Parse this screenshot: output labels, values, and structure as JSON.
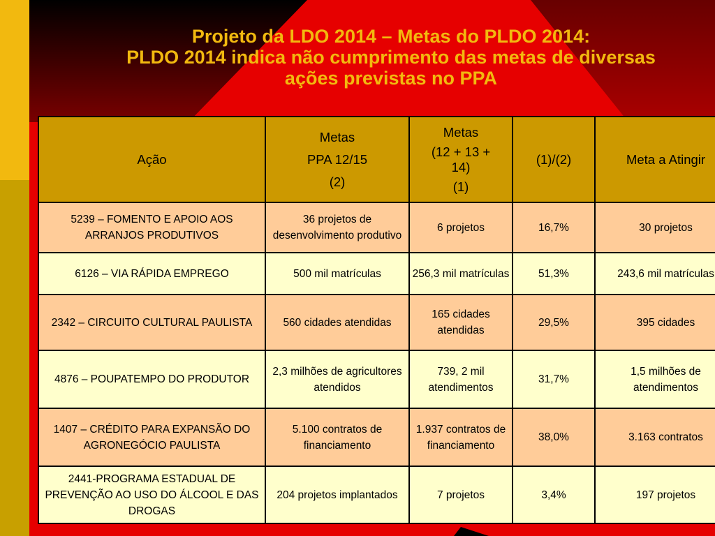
{
  "slide": {
    "title_line1": "Projeto da LDO 2014 – Metas do PLDO 2014:",
    "title_line2": "PLDO 2014 indica não cumprimento das metas de diversas",
    "title_line3": "ações previstas no PPA",
    "colors": {
      "background_red": "#e60000",
      "dark_gradient_top": "#000000",
      "left_strip_yellow": "#f2b90f",
      "left_strip_dark": "#c8a000",
      "header_gold": "#cc9900",
      "row_peach": "#ffcc99",
      "row_light_yellow": "#ffffcc",
      "title_color": "#f2b90f"
    }
  },
  "table": {
    "headers": {
      "acao": "Ação",
      "metas_ppa": [
        "Metas",
        "PPA 12/15",
        "(2)"
      ],
      "metas_12_14": [
        "Metas",
        "(12 + 13 +",
        "14)",
        "(1)"
      ],
      "ratio": "(1)/(2)",
      "meta_atingir": "Meta a Atingir"
    },
    "rows": [
      {
        "acao": "5239 – FOMENTO E APOIO AOS ARRANJOS PRODUTIVOS",
        "metas_ppa": "36 projetos de desenvolvimento produtivo",
        "metas_12_14": "6 projetos",
        "ratio": "16,7%",
        "meta_atingir": "30 projetos"
      },
      {
        "acao": "6126 – VIA RÁPIDA EMPREGO",
        "metas_ppa": "500 mil matrículas",
        "metas_12_14": "256,3 mil matrículas",
        "ratio": "51,3%",
        "meta_atingir": "243,6 mil matrículas"
      },
      {
        "acao": "2342 – CIRCUITO CULTURAL PAULISTA",
        "metas_ppa": "560 cidades atendidas",
        "metas_12_14": "165 cidades atendidas",
        "ratio": "29,5%",
        "meta_atingir": "395 cidades"
      },
      {
        "acao": "4876 – POUPATEMPO DO PRODUTOR",
        "metas_ppa": "2,3 milhões de agricultores atendidos",
        "metas_12_14": "739, 2 mil atendimentos",
        "ratio": "31,7%",
        "meta_atingir": "1,5 milhões de atendimentos"
      },
      {
        "acao": "1407 – CRÉDITO PARA EXPANSÃO DO AGRONEGÓCIO PAULISTA",
        "metas_ppa": "5.100 contratos de financiamento",
        "metas_12_14": "1.937 contratos de financiamento",
        "ratio": "38,0%",
        "meta_atingir": "3.163 contratos"
      },
      {
        "acao": "2441-PROGRAMA ESTADUAL DE PREVENÇÃO AO USO DO ÁLCOOL E DAS DROGAS",
        "metas_ppa": "204 projetos implantados",
        "metas_12_14": "7 projetos",
        "ratio": "3,4%",
        "meta_atingir": "197 projetos"
      }
    ]
  }
}
